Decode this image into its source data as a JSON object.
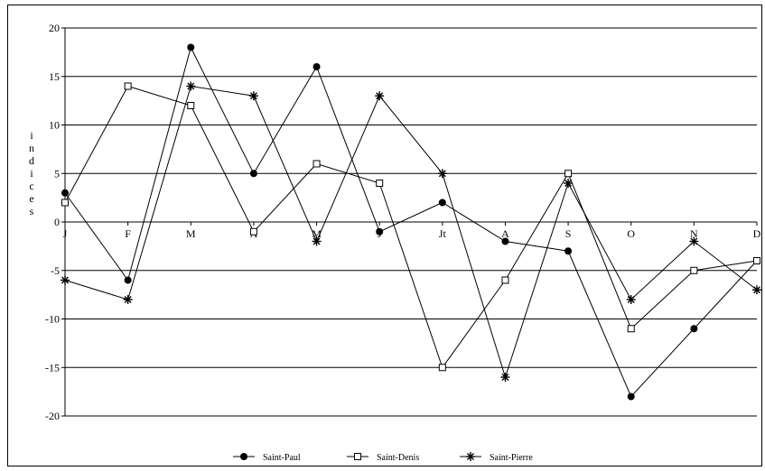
{
  "chart_data": {
    "type": "line",
    "title": "",
    "xlabel": "",
    "ylabel": "indices",
    "categories": [
      "J",
      "F",
      "M",
      "A",
      "M",
      "J",
      "Jt",
      "A",
      "S",
      "O",
      "N",
      "D"
    ],
    "ylim": [
      -20,
      20
    ],
    "yticks": [
      20,
      15,
      10,
      5,
      0,
      -5,
      -10,
      -15,
      -20
    ],
    "grid": true,
    "legend_position": "bottom",
    "series": [
      {
        "name": "Saint-Paul",
        "marker": "filled-circle",
        "color": "#000000",
        "values": [
          3,
          -6,
          18,
          5,
          16,
          -1,
          2,
          -2,
          -3,
          -18,
          -11,
          -4
        ]
      },
      {
        "name": "Saint-Denis",
        "marker": "open-square",
        "color": "#000000",
        "values": [
          2,
          14,
          12,
          -1,
          6,
          4,
          -15,
          -6,
          5,
          -11,
          -5,
          -4
        ]
      },
      {
        "name": "Saint-Pierre",
        "marker": "asterisk",
        "color": "#000000",
        "values": [
          -6,
          -8,
          14,
          13,
          -2,
          13,
          5,
          -16,
          4,
          -8,
          -2,
          -7
        ]
      }
    ]
  }
}
